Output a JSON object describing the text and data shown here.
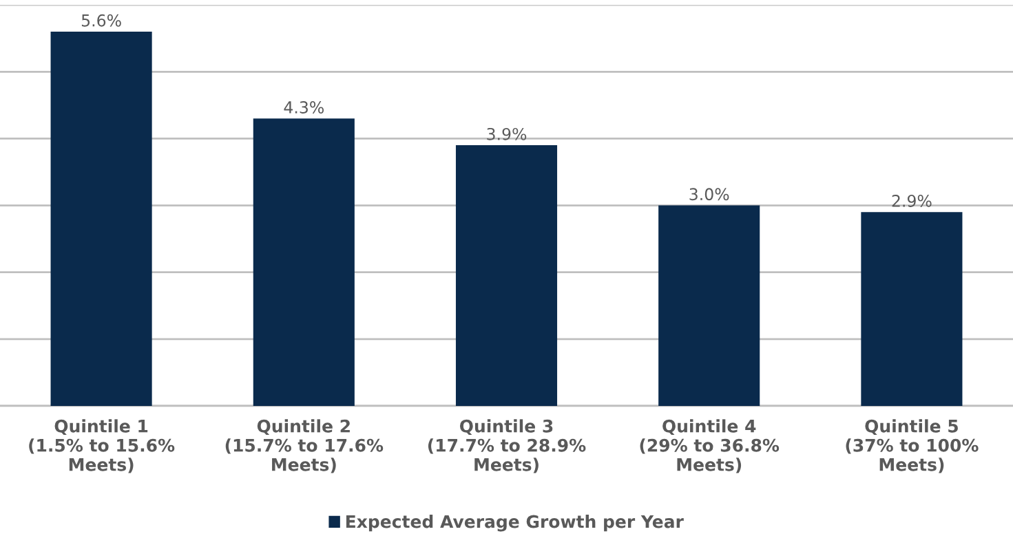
{
  "chart_data": {
    "type": "bar",
    "categories": [
      "Quintile 1\n(1.5% to 15.6%\nMeets)",
      "Quintile 2\n(15.7% to 17.6%\nMeets)",
      "Quintile 3\n(17.7% to 28.9%\nMeets)",
      "Quintile 4\n(29% to 36.8%\nMeets)",
      "Quintile 5\n(37% to 100%\nMeets)"
    ],
    "series": [
      {
        "name": "Expected Average Growth per Year",
        "color": "#0a2a4c",
        "values": [
          5.6,
          4.3,
          3.9,
          3.0,
          2.9
        ],
        "value_labels": [
          "5.6%",
          "4.3%",
          "3.9%",
          "3.0%",
          "2.9%"
        ]
      }
    ],
    "ylim": [
      0,
      6
    ],
    "yticks": [
      0,
      1,
      2,
      3,
      4,
      5,
      6
    ],
    "tick_labels": "x",
    "grid": "y",
    "legend": "bottom"
  }
}
